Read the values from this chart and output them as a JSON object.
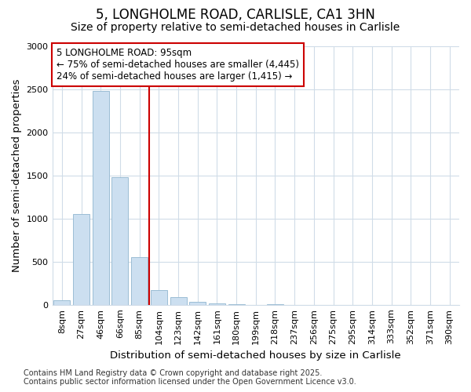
{
  "title_line1": "5, LONGHOLME ROAD, CARLISLE, CA1 3HN",
  "title_line2": "Size of property relative to semi-detached houses in Carlisle",
  "xlabel": "Distribution of semi-detached houses by size in Carlisle",
  "ylabel": "Number of semi-detached properties",
  "categories": [
    "8sqm",
    "27sqm",
    "46sqm",
    "66sqm",
    "85sqm",
    "104sqm",
    "123sqm",
    "142sqm",
    "161sqm",
    "180sqm",
    "199sqm",
    "218sqm",
    "237sqm",
    "256sqm",
    "275sqm",
    "295sqm",
    "314sqm",
    "333sqm",
    "352sqm",
    "371sqm",
    "390sqm"
  ],
  "values": [
    50,
    1050,
    2480,
    1480,
    550,
    175,
    85,
    35,
    20,
    5,
    2,
    10,
    0,
    0,
    0,
    0,
    0,
    0,
    0,
    0,
    0
  ],
  "bar_color": "#ccdff0",
  "bar_edge_color": "#9bbdd4",
  "vline_color": "#cc0000",
  "annotation_text": "5 LONGHOLME ROAD: 95sqm\n← 75% of semi-detached houses are smaller (4,445)\n24% of semi-detached houses are larger (1,415) →",
  "annotation_box_color": "#cc0000",
  "ylim": [
    0,
    3000
  ],
  "yticks": [
    0,
    500,
    1000,
    1500,
    2000,
    2500,
    3000
  ],
  "grid_color": "#d0dce8",
  "footer_text": "Contains HM Land Registry data © Crown copyright and database right 2025.\nContains public sector information licensed under the Open Government Licence v3.0.",
  "title_fontsize": 12,
  "subtitle_fontsize": 10,
  "axis_label_fontsize": 9.5,
  "tick_fontsize": 8,
  "annotation_fontsize": 8.5,
  "footer_fontsize": 7
}
